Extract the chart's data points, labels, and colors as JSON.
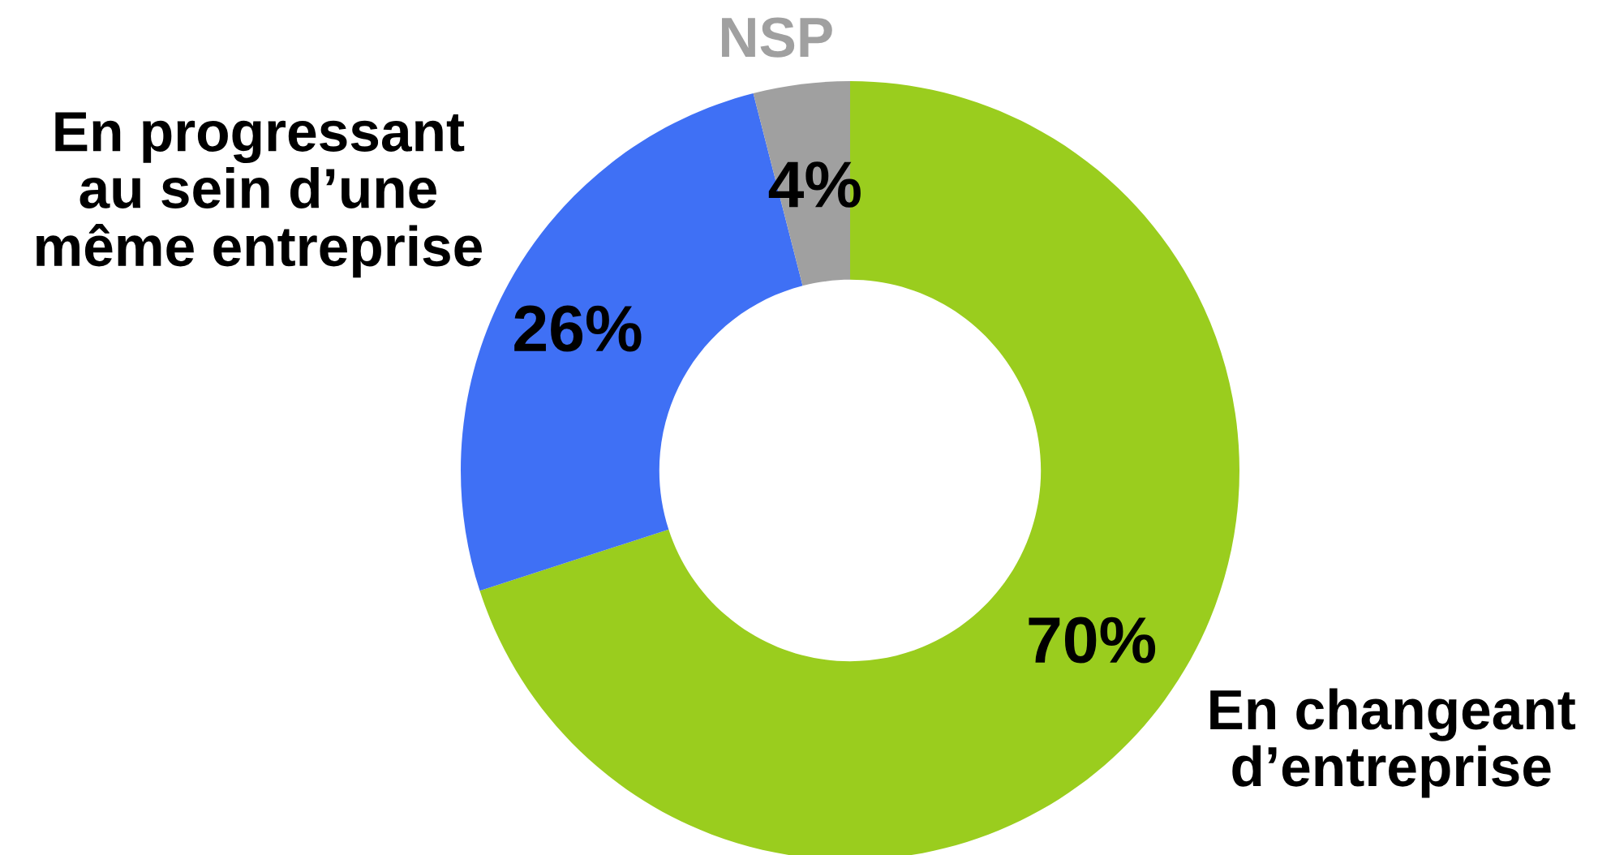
{
  "chart_data": {
    "type": "donut",
    "categories": [
      "En changeant d’entreprise",
      "En progressant au sein d’une même entreprise",
      "NSP"
    ],
    "values": [
      70,
      26,
      4
    ],
    "value_labels": [
      "70%",
      "26%",
      "4%"
    ],
    "colors": [
      "#9acd1e",
      "#3f70f5",
      "#a0a0a0"
    ]
  }
}
